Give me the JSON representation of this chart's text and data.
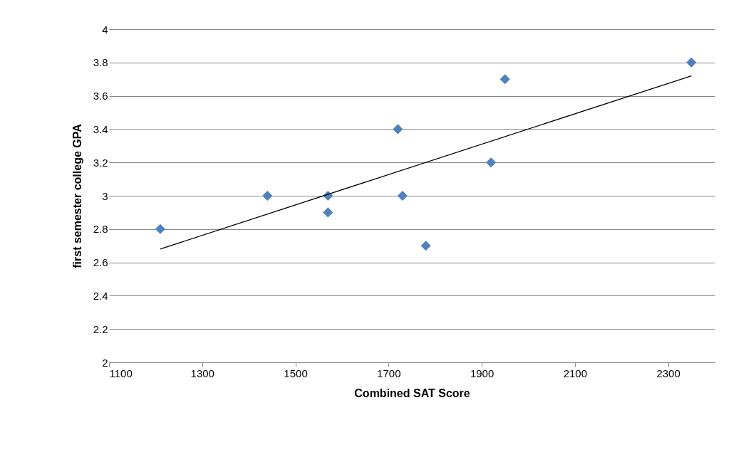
{
  "chart_data": {
    "type": "scatter",
    "xlabel": "Combined SAT Score",
    "ylabel": "first semester college GPA",
    "series": [
      {
        "color": "#4f81bd",
        "marker": "diamond",
        "x": [
          1210,
          1440,
          1570,
          1570,
          1720,
          1730,
          1780,
          1920,
          1950,
          2350
        ],
        "values": [
          2.8,
          3.0,
          3.0,
          2.9,
          3.4,
          3.0,
          2.7,
          3.2,
          3.7,
          3.8
        ]
      },
      {
        "type": "line",
        "color": "#000000",
        "line_style": "solid",
        "x": [
          1210,
          2350
        ],
        "values": [
          2.68,
          3.72
        ]
      }
    ],
    "xlim": [
      1100,
      2400
    ],
    "xticks": [
      1100,
      1300,
      1500,
      1700,
      1900,
      2100,
      2300
    ],
    "ylim": [
      2,
      4
    ],
    "yticks": [
      2,
      2.2,
      2.4,
      2.6,
      2.8,
      3,
      3.2,
      3.4,
      3.6,
      3.8,
      4
    ],
    "grid": "y"
  }
}
